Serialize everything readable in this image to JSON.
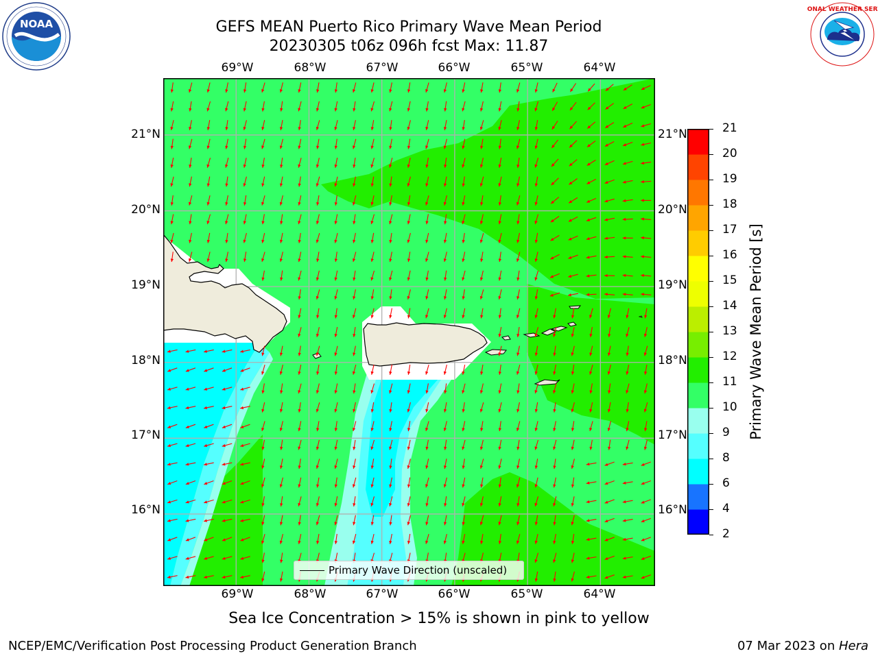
{
  "title": {
    "line1": "GEFS MEAN Puerto Rico Primary Wave Mean Period",
    "line2": "20230305 t06z 096h fcst   Max: 11.87"
  },
  "logos": {
    "noaa_text": "NOAA",
    "noaa_ring_text": "NATIONAL OCEANIC AND ATMOSPHERIC ADMINISTRATION · U.S. DEPARTMENT OF COMMERCE",
    "nws_ring_text": "NATIONAL WEATHER SERVICE"
  },
  "map": {
    "lon_labels": [
      "69°W",
      "68°W",
      "67°W",
      "66°W",
      "65°W",
      "64°W"
    ],
    "lat_labels": [
      "21°N",
      "20°N",
      "19°N",
      "18°N",
      "17°N",
      "16°N"
    ],
    "extent": {
      "lon_min": -70,
      "lon_max": -63.25,
      "lat_min": 15.05,
      "lat_max": 21.75
    },
    "grid": true,
    "land_color": "#efecdc",
    "arrow_color": "#ff0000",
    "legend_label": "Primary Wave Direction (unscaled)"
  },
  "colorbar": {
    "label": "Primary Wave Mean Period [s]",
    "ticks": [
      "2",
      "4",
      "6",
      "8",
      "9",
      "10",
      "11",
      "12",
      "13",
      "14",
      "15",
      "16",
      "17",
      "18",
      "19",
      "20",
      "21"
    ],
    "colors": [
      "#0000ff",
      "#1874ff",
      "#00ffff",
      "#55ffff",
      "#99ffee",
      "#33ff66",
      "#22ee00",
      "#77ee00",
      "#bbee00",
      "#eeff00",
      "#ffff00",
      "#ffcc00",
      "#ffa500",
      "#ff7700",
      "#ff4400",
      "#ff0000"
    ]
  },
  "note": "Sea Ice Concentration > 15% is shown in pink to yellow",
  "footer": {
    "left": "NCEP/EMC/Verification Post Processing Product Generation Branch",
    "right_date": "07 Mar 2023 on ",
    "right_machine": "Hera"
  }
}
